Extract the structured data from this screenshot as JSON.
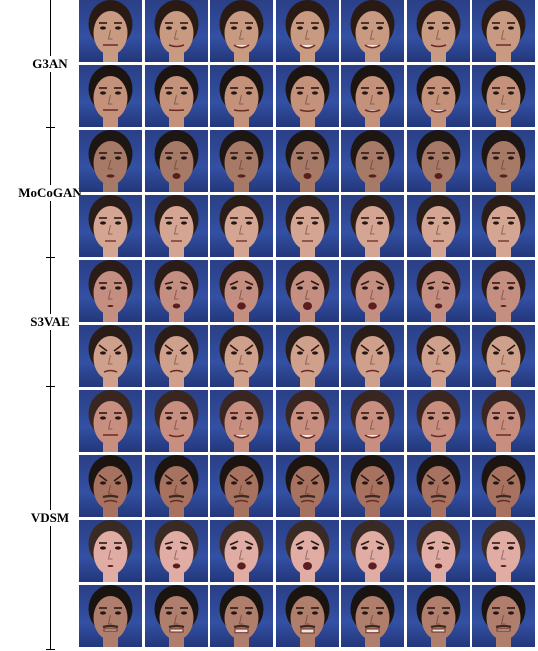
{
  "figure": {
    "rows": 10,
    "frames_per_row": 7,
    "groups": [
      {
        "label": "G3AN",
        "rows": [
          {
            "skin": "#c99a82",
            "hair": "#2a1a14",
            "expr": "smile-increasing"
          },
          {
            "skin": "#c4927a",
            "hair": "#1c1410",
            "expr": "neutral-to-smile"
          }
        ]
      },
      {
        "label": "MoCoGAN",
        "rows": [
          {
            "skin": "#a77a68",
            "hair": "#1e1612",
            "expr": "talk"
          },
          {
            "skin": "#d4a592",
            "hair": "#2a1c16",
            "expr": "neutral"
          }
        ]
      },
      {
        "label": "S3VAE",
        "rows": [
          {
            "skin": "#c48e80",
            "hair": "#2b1c18",
            "expr": "surprise"
          },
          {
            "skin": "#cfa08c",
            "hair": "#2a1d18",
            "expr": "frown"
          }
        ]
      },
      {
        "label": "VDSM",
        "rows": [
          {
            "skin": "#c88e80",
            "hair": "#3a2620",
            "expr": "smile"
          },
          {
            "skin": "#a87260",
            "hair": "#1c1410",
            "expr": "angry"
          },
          {
            "skin": "#e0aca4",
            "hair": "#3a2a24",
            "expr": "surprise"
          },
          {
            "skin": "#b07e6c",
            "hair": "#1a1410",
            "expr": "grimace"
          }
        ]
      }
    ]
  }
}
